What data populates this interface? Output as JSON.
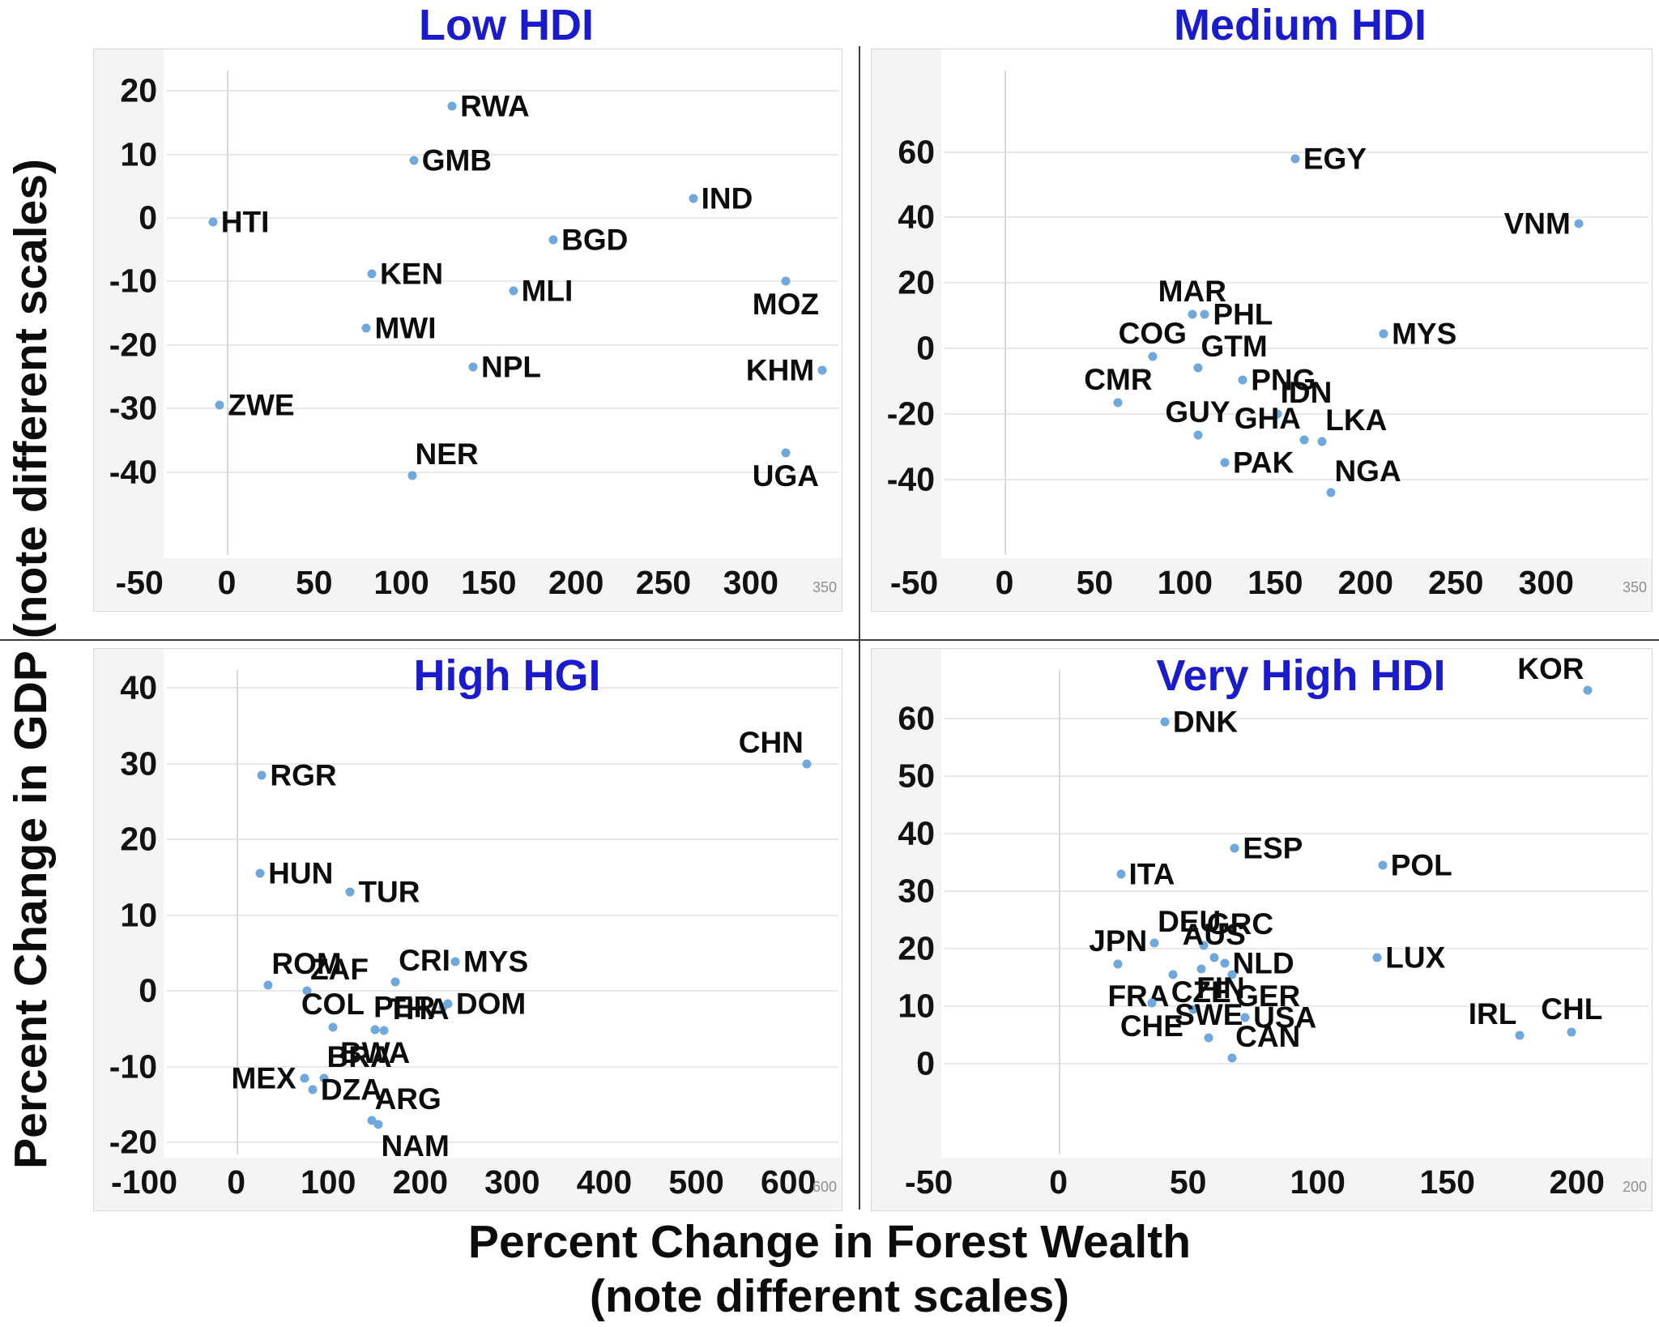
{
  "y_axis_label": "Percent Change in GDP (note different scales)",
  "x_axis_label_line1": "Percent Change in Forest Wealth",
  "x_axis_label_line2": "(note different scales)",
  "colors": {
    "title": "#1b1bce",
    "point": "#6fa8dc",
    "gridline": "#e8e8e8"
  },
  "chart_data": {
    "type": "scatter",
    "x_label": "Percent Change in Forest Wealth (note different scales)",
    "y_label": "Percent Change in GDP (note different scales)",
    "legend": "none",
    "grid": "horizontal + zero vertical line",
    "panels": [
      {
        "title": "Low HDI",
        "title_position": "above",
        "edge_label": "350",
        "x_ticks": [
          -50,
          0,
          50,
          100,
          150,
          200,
          250,
          300
        ],
        "y_ticks": [
          20,
          10,
          0,
          -10,
          -20,
          -30,
          -40
        ],
        "axis": {
          "x0": 164,
          "x_ppu": 2.156,
          "y0": 208,
          "y_ppu": 7.84,
          "x_range": [
            -76,
            353
          ],
          "y_range": [
            -62,
            26.5
          ]
        },
        "points": [
          {
            "code": "RWA",
            "x": 129,
            "y": 17.6,
            "side": "r"
          },
          {
            "code": "GMB",
            "x": 107,
            "y": 9,
            "side": "r"
          },
          {
            "code": "IND",
            "x": 267,
            "y": 3,
            "side": "r"
          },
          {
            "code": "HTI",
            "x": -8,
            "y": -0.6,
            "side": "r"
          },
          {
            "code": "BGD",
            "x": 187,
            "y": -3.5,
            "side": "r"
          },
          {
            "code": "KEN",
            "x": 83,
            "y": -8.8,
            "side": "r"
          },
          {
            "code": "MLI",
            "x": 164,
            "y": -11.5,
            "side": "r"
          },
          {
            "code": "MOZ",
            "x": 320,
            "y": -10,
            "side": "b"
          },
          {
            "code": "MWI",
            "x": 80,
            "y": -17.4,
            "side": "r"
          },
          {
            "code": "NPL",
            "x": 141,
            "y": -23.5,
            "side": "r"
          },
          {
            "code": "KHM",
            "x": 341,
            "y": -24,
            "side": "l"
          },
          {
            "code": "ZWE",
            "x": -4,
            "y": -29.5,
            "side": "r"
          },
          {
            "code": "NER",
            "x": 106,
            "y": -40.5,
            "side": "tr"
          },
          {
            "code": "UGA",
            "x": 320,
            "y": -37,
            "side": "b"
          }
        ]
      },
      {
        "title": "Medium HDI",
        "title_position": "above",
        "edge_label": "350",
        "x_ticks": [
          -50,
          0,
          50,
          100,
          150,
          200,
          250,
          300
        ],
        "y_ticks": [
          60,
          40,
          20,
          0,
          -20,
          -40
        ],
        "axis": {
          "x0": 164,
          "x_ppu": 2.229,
          "y0": 369,
          "y_ppu": 4.04,
          "x_range": [
            -73,
            359
          ],
          "y_range": [
            -80,
            91
          ]
        },
        "points": [
          {
            "code": "EGY",
            "x": 161,
            "y": 58,
            "side": "r"
          },
          {
            "code": "VNM",
            "x": 318,
            "y": 38,
            "side": "l"
          },
          {
            "code": "MAR",
            "x": 104,
            "y": 10.5,
            "side": "t"
          },
          {
            "code": "PHL",
            "x": 111,
            "y": 10.5,
            "side": "r"
          },
          {
            "code": "MYS",
            "x": 210,
            "y": 4.5,
            "side": "r"
          },
          {
            "code": "COG",
            "x": 82,
            "y": -2.5,
            "side": "t"
          },
          {
            "code": "GTM",
            "x": 107,
            "y": -6,
            "side": "tr"
          },
          {
            "code": "PNG",
            "x": 132,
            "y": -9.7,
            "side": "r"
          },
          {
            "code": "CMR",
            "x": 63,
            "y": -16.7,
            "side": "t"
          },
          {
            "code": "IDN",
            "x": 151,
            "y": -20,
            "side": "tr"
          },
          {
            "code": "GUY",
            "x": 107,
            "y": -26.5,
            "side": "t"
          },
          {
            "code": "GHA",
            "x": 166,
            "y": -28,
            "side": "tl"
          },
          {
            "code": "LKA",
            "x": 176,
            "y": -28.5,
            "side": "tr"
          },
          {
            "code": "PAK",
            "x": 122,
            "y": -35,
            "side": "r"
          },
          {
            "code": "NGA",
            "x": 181,
            "y": -44,
            "side": "tr"
          }
        ]
      },
      {
        "title": "High HGI",
        "title_position": "inside",
        "edge_label": "600",
        "x_ticks": [
          -100,
          0,
          100,
          200,
          300,
          400,
          500,
          600
        ],
        "y_ticks": [
          40,
          30,
          20,
          10,
          0,
          -10,
          -20
        ],
        "axis": {
          "x0": 175.6,
          "x_ppu": 1.136,
          "y0": 422,
          "y_ppu": 9.35,
          "x_range": [
            -154,
            659
          ],
          "y_range": [
            -29,
            45
          ]
        },
        "points": [
          {
            "code": "RGR",
            "x": 28,
            "y": 28.5,
            "side": "r"
          },
          {
            "code": "HUN",
            "x": 26,
            "y": 15.5,
            "side": "r"
          },
          {
            "code": "TUR",
            "x": 124,
            "y": 13,
            "side": "r"
          },
          {
            "code": "CHN",
            "x": 620,
            "y": 30,
            "side": "tl"
          },
          {
            "code": "ROM",
            "x": 35,
            "y": 0.7,
            "side": "tr"
          },
          {
            "code": "ZAF",
            "x": 77,
            "y": 0,
            "side": "tr"
          },
          {
            "code": "CRI",
            "x": 173,
            "y": 1.2,
            "side": "tr"
          },
          {
            "code": "MYS",
            "x": 238,
            "y": 3.8,
            "side": "r"
          },
          {
            "code": "PER",
            "x": 225,
            "y": -2.1,
            "side": "l"
          },
          {
            "code": "DOM",
            "x": 230,
            "y": -1.7,
            "side": "r"
          },
          {
            "code": "COL",
            "x": 105,
            "y": -4.8,
            "side": "t"
          },
          {
            "code": "THA",
            "x": 161,
            "y": -5.2,
            "side": "tr"
          },
          {
            "code": "BWA",
            "x": 151,
            "y": -5.1,
            "side": "b"
          },
          {
            "code": "MEX",
            "x": 74,
            "y": -11.5,
            "side": "l"
          },
          {
            "code": "BRA",
            "x": 95,
            "y": -11.6,
            "side": "tr"
          },
          {
            "code": "DZA",
            "x": 83,
            "y": -13.1,
            "side": "r"
          },
          {
            "code": "ARG",
            "x": 147,
            "y": -17.1,
            "side": "tr"
          },
          {
            "code": "NAM",
            "x": 154,
            "y": -17.6,
            "side": "br"
          }
        ]
      },
      {
        "title": "Very High HDI",
        "title_position": "inside",
        "edge_label": "200",
        "x_ticks": [
          -50,
          0,
          50,
          100,
          150,
          200
        ],
        "y_ticks": [
          60,
          50,
          40,
          30,
          20,
          10,
          0
        ],
        "axis": {
          "x0": 230.7,
          "x_ppu": 3.2,
          "y0": 512,
          "y_ppu": 7.1,
          "x_range": [
            -72,
            229
          ],
          "y_range": [
            -25,
            72
          ]
        },
        "points": [
          {
            "code": "KOR",
            "x": 204,
            "y": 65,
            "side": "tl"
          },
          {
            "code": "DNK",
            "x": 41,
            "y": 59.5,
            "side": "r"
          },
          {
            "code": "ESP",
            "x": 68,
            "y": 37.5,
            "side": "r"
          },
          {
            "code": "ITA",
            "x": 24,
            "y": 33,
            "side": "r"
          },
          {
            "code": "POL",
            "x": 125,
            "y": 34.5,
            "side": "r"
          },
          {
            "code": "DEU",
            "x": 37,
            "y": 21,
            "side": "tr"
          },
          {
            "code": "GRC",
            "x": 56,
            "y": 20.5,
            "side": "tr"
          },
          {
            "code": "JPN",
            "x": 23,
            "y": 17.3,
            "side": "t"
          },
          {
            "code": "AUS",
            "x": 60,
            "y": 18.5,
            "side": "t"
          },
          {
            "code": "NLD",
            "x": 64,
            "y": 17.5,
            "side": "r"
          },
          {
            "code": "FRA",
            "x": 44,
            "y": 15.5,
            "side": "bl"
          },
          {
            "code": "CZE",
            "x": 55,
            "y": 16.5,
            "side": "b"
          },
          {
            "code": "GER",
            "x": 67,
            "y": 15.5,
            "side": "br"
          },
          {
            "code": "FIN",
            "x": 52,
            "y": 9.5,
            "side": "tr"
          },
          {
            "code": "CHE",
            "x": 36,
            "y": 10.5,
            "side": "b"
          },
          {
            "code": "SWE",
            "x": 58,
            "y": 4.5,
            "side": "t"
          },
          {
            "code": "USA",
            "x": 72,
            "y": 8,
            "side": "r"
          },
          {
            "code": "CAN",
            "x": 67,
            "y": 1,
            "side": "tr"
          },
          {
            "code": "LUX",
            "x": 123,
            "y": 18.5,
            "side": "r"
          },
          {
            "code": "IRL",
            "x": 178,
            "y": 5,
            "side": "tl"
          },
          {
            "code": "CHL",
            "x": 198,
            "y": 5.5,
            "side": "t"
          }
        ]
      }
    ]
  }
}
